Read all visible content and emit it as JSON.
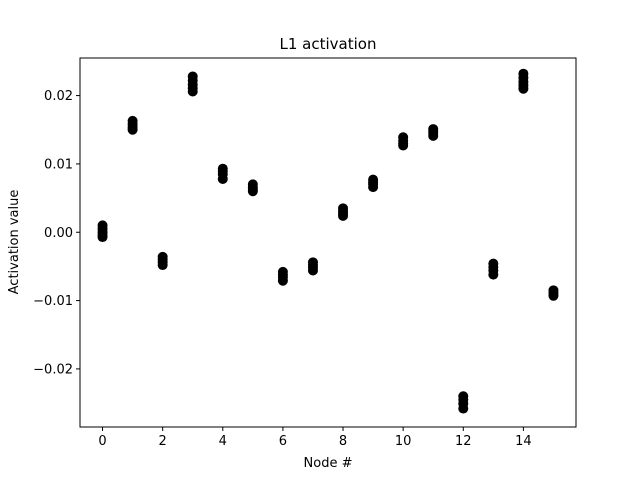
{
  "chart_data": {
    "type": "scatter",
    "title": "L1 activation",
    "xlabel": "Node #",
    "ylabel": "Activation value",
    "xlim": [
      -0.75,
      15.75
    ],
    "ylim": [
      -0.0285,
      0.0255
    ],
    "xticks": [
      0,
      2,
      4,
      6,
      8,
      10,
      12,
      14
    ],
    "yticks": [
      -0.02,
      -0.01,
      0.0,
      0.01,
      0.02
    ],
    "ytick_labels": [
      "−0.02",
      "−0.01",
      "0.00",
      "0.01",
      "0.02"
    ],
    "grid": false,
    "marker_color": "#000000",
    "series": [
      {
        "points": [
          {
            "x": 0,
            "y": 0.001
          },
          {
            "x": 0,
            "y": 0.0005
          },
          {
            "x": 0,
            "y": 0.0
          },
          {
            "x": 0,
            "y": -0.0004
          },
          {
            "x": 0,
            "y": -0.0007
          },
          {
            "x": 1,
            "y": 0.0163
          },
          {
            "x": 1,
            "y": 0.0158
          },
          {
            "x": 1,
            "y": 0.0154
          },
          {
            "x": 1,
            "y": 0.015
          },
          {
            "x": 2,
            "y": -0.0036
          },
          {
            "x": 2,
            "y": -0.004
          },
          {
            "x": 2,
            "y": -0.0044
          },
          {
            "x": 2,
            "y": -0.0048
          },
          {
            "x": 3,
            "y": 0.0228
          },
          {
            "x": 3,
            "y": 0.0222
          },
          {
            "x": 3,
            "y": 0.0216
          },
          {
            "x": 3,
            "y": 0.0211
          },
          {
            "x": 3,
            "y": 0.0206
          },
          {
            "x": 4,
            "y": 0.0093
          },
          {
            "x": 4,
            "y": 0.0089
          },
          {
            "x": 4,
            "y": 0.0085
          },
          {
            "x": 4,
            "y": 0.0078
          },
          {
            "x": 5,
            "y": 0.007
          },
          {
            "x": 5,
            "y": 0.0066
          },
          {
            "x": 5,
            "y": 0.0063
          },
          {
            "x": 5,
            "y": 0.006
          },
          {
            "x": 6,
            "y": -0.0058
          },
          {
            "x": 6,
            "y": -0.0062
          },
          {
            "x": 6,
            "y": -0.0066
          },
          {
            "x": 6,
            "y": -0.0071
          },
          {
            "x": 7,
            "y": -0.0044
          },
          {
            "x": 7,
            "y": -0.0048
          },
          {
            "x": 7,
            "y": -0.0052
          },
          {
            "x": 7,
            "y": -0.0056
          },
          {
            "x": 8,
            "y": 0.0035
          },
          {
            "x": 8,
            "y": 0.0031
          },
          {
            "x": 8,
            "y": 0.0027
          },
          {
            "x": 8,
            "y": 0.0024
          },
          {
            "x": 9,
            "y": 0.0077
          },
          {
            "x": 9,
            "y": 0.0073
          },
          {
            "x": 9,
            "y": 0.007
          },
          {
            "x": 9,
            "y": 0.0066
          },
          {
            "x": 10,
            "y": 0.0139
          },
          {
            "x": 10,
            "y": 0.0134
          },
          {
            "x": 10,
            "y": 0.013
          },
          {
            "x": 10,
            "y": 0.0127
          },
          {
            "x": 11,
            "y": 0.0151
          },
          {
            "x": 11,
            "y": 0.0148
          },
          {
            "x": 11,
            "y": 0.0145
          },
          {
            "x": 11,
            "y": 0.0141
          },
          {
            "x": 12,
            "y": -0.024
          },
          {
            "x": 12,
            "y": -0.0245
          },
          {
            "x": 12,
            "y": -0.0251
          },
          {
            "x": 12,
            "y": -0.0258
          },
          {
            "x": 13,
            "y": -0.0046
          },
          {
            "x": 13,
            "y": -0.0051
          },
          {
            "x": 13,
            "y": -0.0056
          },
          {
            "x": 13,
            "y": -0.0062
          },
          {
            "x": 14,
            "y": 0.0232
          },
          {
            "x": 14,
            "y": 0.0226
          },
          {
            "x": 14,
            "y": 0.022
          },
          {
            "x": 14,
            "y": 0.0215
          },
          {
            "x": 14,
            "y": 0.021
          },
          {
            "x": 15,
            "y": -0.0085
          },
          {
            "x": 15,
            "y": -0.0089
          },
          {
            "x": 15,
            "y": -0.0093
          }
        ]
      }
    ]
  }
}
